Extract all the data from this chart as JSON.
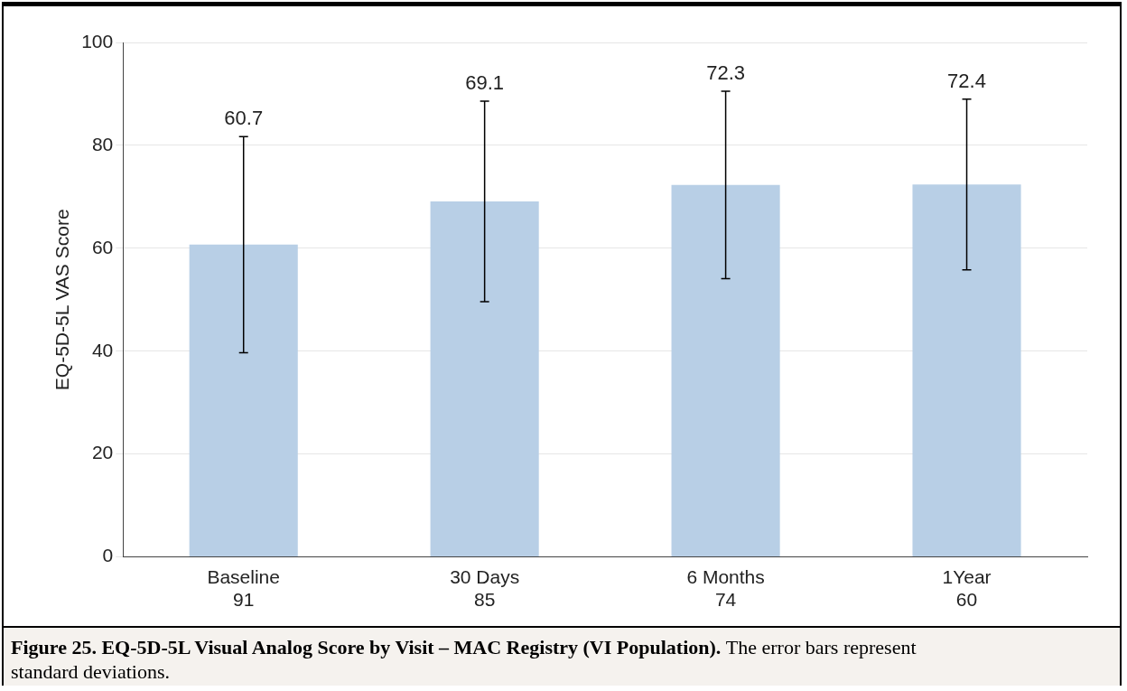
{
  "chart_data": {
    "type": "bar",
    "ylabel": "EQ-5D-5L VAS Score",
    "categories": [
      "Baseline\n91",
      "30 Days\n85",
      "6 Months\n74",
      "1Year\n60"
    ],
    "values": [
      60.7,
      69.1,
      72.3,
      72.4
    ],
    "errors": [
      21,
      19.5,
      18.2,
      16.6
    ],
    "color": "#b8cfe6",
    "ylim": [
      0,
      100
    ],
    "yticks": [
      0,
      20,
      40,
      60,
      80,
      100
    ],
    "grid": "y",
    "legend": false,
    "annotations": [
      "Figure 25. EQ-5D-5L Visual Analog Score by Visit – MAC Registry (VI Population).",
      "The error bars represent standard deviations.",
      {
        "text": "60.7",
        "x": "Baseline\n91",
        "y": 81.7
      },
      {
        "text": "69.1",
        "x": "30 Days\n85",
        "y": 88.6
      },
      {
        "text": "72.3",
        "x": "6 Months\n74",
        "y": 90.5
      },
      {
        "text": "72.4",
        "x": "1Year\n60",
        "y": 89
      }
    ]
  }
}
